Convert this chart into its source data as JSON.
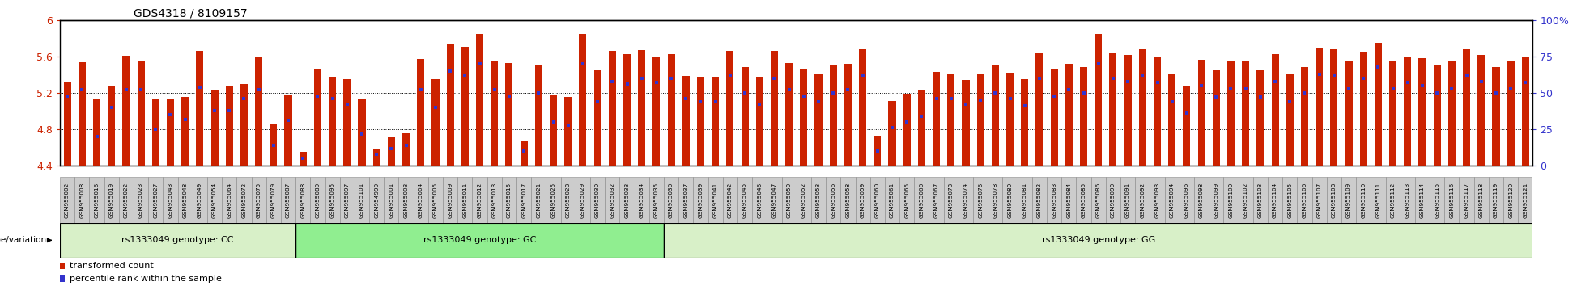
{
  "title": "GDS4318 / 8109157",
  "ylim_left": [
    4.4,
    6.0
  ],
  "ylim_right": [
    0,
    100
  ],
  "yticks_left": [
    4.4,
    4.8,
    5.2,
    5.6,
    6.0
  ],
  "ytick_labels_left": [
    "4.4",
    "4.8",
    "5.2",
    "5.6",
    "6"
  ],
  "bar_bottom": 4.4,
  "bar_color": "#cc2200",
  "dot_color": "#3333cc",
  "background_color": "#ffffff",
  "tick_box_color": "#cccccc",
  "tick_box_edge_color": "#888888",
  "genotype_colors": [
    "#d8f0c8",
    "#90ee90",
    "#d8f0c8"
  ],
  "genotype_edge_colors": [
    "#aaddaa",
    "#55bb55",
    "#aaddaa"
  ],
  "genotype_labels": [
    "rs1333049 genotype: CC",
    "rs1333049 genotype: GC",
    "rs1333049 genotype: GG"
  ],
  "legend_label_red": "transformed count",
  "legend_label_blue": "percentile rank within the sample",
  "genotype_variation_label": "genotype/variation",
  "samples": [
    "GSM955002",
    "GSM955008",
    "GSM955016",
    "GSM955019",
    "GSM955022",
    "GSM955023",
    "GSM955027",
    "GSM955043",
    "GSM955048",
    "GSM955049",
    "GSM955054",
    "GSM955064",
    "GSM955072",
    "GSM955075",
    "GSM955079",
    "GSM955087",
    "GSM955088",
    "GSM955089",
    "GSM955095",
    "GSM955097",
    "GSM955101",
    "GSM954999",
    "GSM955001",
    "GSM955003",
    "GSM955004",
    "GSM955005",
    "GSM955009",
    "GSM955011",
    "GSM955012",
    "GSM955013",
    "GSM955015",
    "GSM955017",
    "GSM955021",
    "GSM955025",
    "GSM955028",
    "GSM955029",
    "GSM955030",
    "GSM955032",
    "GSM955033",
    "GSM955034",
    "GSM955035",
    "GSM955036",
    "GSM955037",
    "GSM955039",
    "GSM955041",
    "GSM955042",
    "GSM955045",
    "GSM955046",
    "GSM955047",
    "GSM955050",
    "GSM955052",
    "GSM955053",
    "GSM955056",
    "GSM955058",
    "GSM955059",
    "GSM955060",
    "GSM955061",
    "GSM955065",
    "GSM955066",
    "GSM955067",
    "GSM955073",
    "GSM955074",
    "GSM955076",
    "GSM955078",
    "GSM955080",
    "GSM955081",
    "GSM955082",
    "GSM955083",
    "GSM955084",
    "GSM955085",
    "GSM955086",
    "GSM955090",
    "GSM955091",
    "GSM955092",
    "GSM955093",
    "GSM955094",
    "GSM955096",
    "GSM955098",
    "GSM955099",
    "GSM955100",
    "GSM955102",
    "GSM955103",
    "GSM955104",
    "GSM955105",
    "GSM955106",
    "GSM955107",
    "GSM955108",
    "GSM955109",
    "GSM955110",
    "GSM955111",
    "GSM955112",
    "GSM955113",
    "GSM955114",
    "GSM955115",
    "GSM955116",
    "GSM955117",
    "GSM955118",
    "GSM955119",
    "GSM955120",
    "GSM955121"
  ],
  "transformed_counts": [
    5.32,
    5.54,
    5.13,
    5.28,
    5.61,
    5.55,
    5.14,
    5.14,
    5.16,
    5.66,
    5.24,
    5.28,
    5.3,
    5.6,
    4.86,
    5.17,
    4.55,
    5.47,
    5.38,
    5.35,
    5.14,
    4.58,
    4.72,
    4.76,
    5.57,
    5.35,
    5.73,
    5.71,
    5.85,
    5.55,
    5.53,
    4.68,
    5.5,
    5.18,
    5.16,
    5.85,
    5.45,
    5.66,
    5.63,
    5.67,
    5.6,
    5.63,
    5.39,
    5.38,
    5.38,
    5.66,
    5.48,
    5.38,
    5.66,
    5.53,
    5.47,
    5.4,
    5.5,
    5.52,
    5.68,
    4.73,
    5.11,
    5.19,
    5.23,
    5.43,
    5.4,
    5.34,
    5.41,
    5.51,
    5.42,
    5.35,
    5.64,
    5.47,
    5.52,
    5.48,
    5.85,
    5.64,
    5.62,
    5.68,
    5.6,
    5.4,
    5.28,
    5.56,
    5.45,
    5.55,
    5.55,
    5.45,
    5.63,
    5.4,
    5.48,
    5.7,
    5.68,
    5.55,
    5.65,
    5.75,
    5.55,
    5.6,
    5.58,
    5.5,
    5.55,
    5.68,
    5.62,
    5.48,
    5.55,
    5.6
  ],
  "percentile_ranks": [
    48,
    52,
    20,
    40,
    52,
    52,
    25,
    35,
    32,
    54,
    38,
    38,
    46,
    52,
    14,
    31,
    5,
    48,
    46,
    42,
    22,
    8,
    12,
    14,
    52,
    40,
    65,
    62,
    70,
    52,
    48,
    10,
    50,
    30,
    28,
    70,
    44,
    58,
    56,
    60,
    57,
    60,
    46,
    44,
    44,
    62,
    50,
    42,
    60,
    52,
    48,
    44,
    50,
    52,
    62,
    10,
    26,
    30,
    34,
    46,
    46,
    42,
    45,
    50,
    46,
    41,
    60,
    48,
    52,
    50,
    70,
    60,
    58,
    62,
    57,
    44,
    36,
    55,
    47,
    53,
    53,
    47,
    58,
    44,
    50,
    63,
    62,
    53,
    60,
    68,
    53,
    57,
    55,
    50,
    53,
    62,
    58,
    50,
    53,
    57
  ],
  "group_boundaries": [
    0,
    16,
    41,
    100
  ],
  "right_axis_ticks": [
    0,
    25,
    50,
    75,
    100
  ],
  "right_axis_labels": [
    "0",
    "25",
    "50",
    "75",
    "100%"
  ]
}
